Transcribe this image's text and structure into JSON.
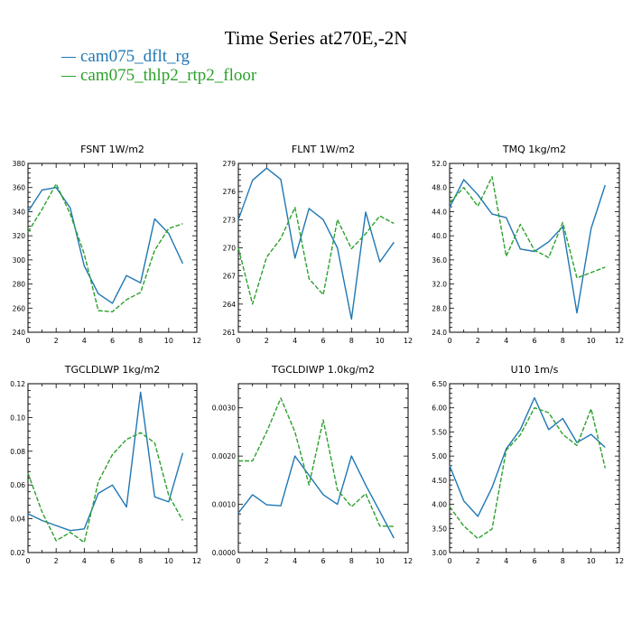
{
  "title": "Time Series at270E,-2N",
  "legend": [
    {
      "label": "cam075_dflt_rg",
      "color": "#1f77b4"
    },
    {
      "label": "cam075_thlp2_rtp2_floor",
      "color": "#2ca02c"
    }
  ],
  "chart_data": [
    {
      "type": "line",
      "title": "FSNT   1W/m2",
      "x": [
        0,
        1,
        2,
        3,
        4,
        5,
        6,
        7,
        8,
        9,
        10,
        11
      ],
      "xlim": [
        0,
        12
      ],
      "xticks": [
        "0",
        "2",
        "4",
        "6",
        "8",
        "10",
        "12"
      ],
      "ylim": [
        240,
        380
      ],
      "yticks": [
        "240",
        "260",
        "280",
        "300",
        "320",
        "340",
        "360",
        "380"
      ],
      "series": [
        {
          "name": "cam075_dflt_rg",
          "values": [
            340,
            358,
            360,
            343,
            295,
            272,
            264,
            287,
            281,
            334,
            322,
            297
          ]
        },
        {
          "name": "cam075_thlp2_rtp2_floor",
          "values": [
            323,
            342,
            363,
            338,
            305,
            258,
            257,
            267,
            273,
            308,
            326,
            330
          ]
        }
      ]
    },
    {
      "type": "line",
      "title": "FLNT   1W/m2",
      "x": [
        0,
        1,
        2,
        3,
        4,
        5,
        6,
        7,
        8,
        9,
        10,
        11
      ],
      "xlim": [
        0,
        12
      ],
      "xticks": [
        "0",
        "2",
        "4",
        "6",
        "8",
        "10",
        "12"
      ],
      "ylim": [
        261,
        279
      ],
      "yticks": [
        "261",
        "264",
        "267",
        "270",
        "273",
        "276",
        "279"
      ],
      "series": [
        {
          "name": "cam075_dflt_rg",
          "values": [
            273,
            277.2,
            278.5,
            277.3,
            268.9,
            274.2,
            273,
            270,
            262.4,
            273.8,
            268.5,
            270.6
          ]
        },
        {
          "name": "cam075_thlp2_rtp2_floor",
          "values": [
            270,
            264,
            269,
            271,
            274.3,
            266.7,
            265,
            273,
            269.9,
            271.5,
            273.4,
            272.6
          ]
        }
      ]
    },
    {
      "type": "line",
      "title": "TMQ   1kg/m2",
      "x": [
        0,
        1,
        2,
        3,
        4,
        5,
        6,
        7,
        8,
        9,
        10,
        11
      ],
      "xlim": [
        0,
        12
      ],
      "xticks": [
        "0",
        "2",
        "4",
        "6",
        "8",
        "10",
        "12"
      ],
      "ylim": [
        24,
        52
      ],
      "yticks": [
        "24.0",
        "28.0",
        "32.0",
        "36.0",
        "40.0",
        "44.0",
        "48.0",
        "52.0"
      ],
      "series": [
        {
          "name": "cam075_dflt_rg",
          "values": [
            44.7,
            49.3,
            46.8,
            43.6,
            43,
            37.8,
            37.4,
            39,
            41.5,
            27.2,
            41.2,
            48.4
          ]
        },
        {
          "name": "cam075_thlp2_rtp2_floor",
          "values": [
            45.5,
            48,
            44.9,
            49.8,
            36.6,
            41.9,
            37.6,
            36.4,
            42.2,
            33,
            33.9,
            34.8
          ]
        }
      ]
    },
    {
      "type": "line",
      "title": "TGCLDLWP   1kg/m2",
      "x": [
        0,
        1,
        2,
        3,
        4,
        5,
        6,
        7,
        8,
        9,
        10,
        11
      ],
      "xlim": [
        0,
        12
      ],
      "xticks": [
        "0",
        "2",
        "4",
        "6",
        "8",
        "10",
        "12"
      ],
      "ylim": [
        0.02,
        0.12
      ],
      "yticks": [
        "0.02",
        "0.04",
        "0.06",
        "0.08",
        "0.10",
        "0.12"
      ],
      "series": [
        {
          "name": "cam075_dflt_rg",
          "values": [
            0.043,
            0.039,
            0.036,
            0.033,
            0.034,
            0.055,
            0.06,
            0.047,
            0.115,
            0.053,
            0.05,
            0.079
          ]
        },
        {
          "name": "cam075_thlp2_rtp2_floor",
          "values": [
            0.067,
            0.044,
            0.027,
            0.032,
            0.026,
            0.062,
            0.078,
            0.087,
            0.091,
            0.085,
            0.054,
            0.039
          ]
        }
      ]
    },
    {
      "type": "line",
      "title": "TGCLDIWP   1.0kg/m2",
      "x": [
        0,
        1,
        2,
        3,
        4,
        5,
        6,
        7,
        8,
        9,
        10,
        11
      ],
      "xlim": [
        0,
        12
      ],
      "xticks": [
        "0",
        "2",
        "4",
        "6",
        "8",
        "10",
        "12"
      ],
      "ylim": [
        0,
        0.0035
      ],
      "yticks": [
        "0.0000",
        "0.0010",
        "0.0020",
        "0.0030"
      ],
      "series": [
        {
          "name": "cam075_dflt_rg",
          "values": [
            0.00082,
            0.0012,
            0.00099,
            0.00097,
            0.002,
            0.0016,
            0.0012,
            0.001,
            0.002,
            0.0014,
            0.00085,
            0.0003
          ]
        },
        {
          "name": "cam075_thlp2_rtp2_floor",
          "values": [
            0.0019,
            0.0019,
            0.0025,
            0.0032,
            0.0025,
            0.0014,
            0.00275,
            0.0013,
            0.00095,
            0.00122,
            0.00055,
            0.00054
          ]
        }
      ]
    },
    {
      "type": "line",
      "title": "U10   1m/s",
      "x": [
        0,
        1,
        2,
        3,
        4,
        5,
        6,
        7,
        8,
        9,
        10,
        11
      ],
      "xlim": [
        0,
        12
      ],
      "xticks": [
        "0",
        "2",
        "4",
        "6",
        "8",
        "10",
        "12"
      ],
      "ylim": [
        3,
        6.5
      ],
      "yticks": [
        "3.00",
        "3.50",
        "4.00",
        "4.50",
        "5.00",
        "5.50",
        "6.00",
        "6.50"
      ],
      "series": [
        {
          "name": "cam075_dflt_rg",
          "values": [
            4.8,
            4.07,
            3.75,
            4.35,
            5.15,
            5.55,
            6.21,
            5.55,
            5.78,
            5.28,
            5.45,
            5.18
          ]
        },
        {
          "name": "cam075_thlp2_rtp2_floor",
          "values": [
            3.95,
            3.55,
            3.29,
            3.49,
            5.12,
            5.44,
            6,
            5.9,
            5.45,
            5.22,
            5.98,
            4.75
          ]
        }
      ]
    }
  ]
}
